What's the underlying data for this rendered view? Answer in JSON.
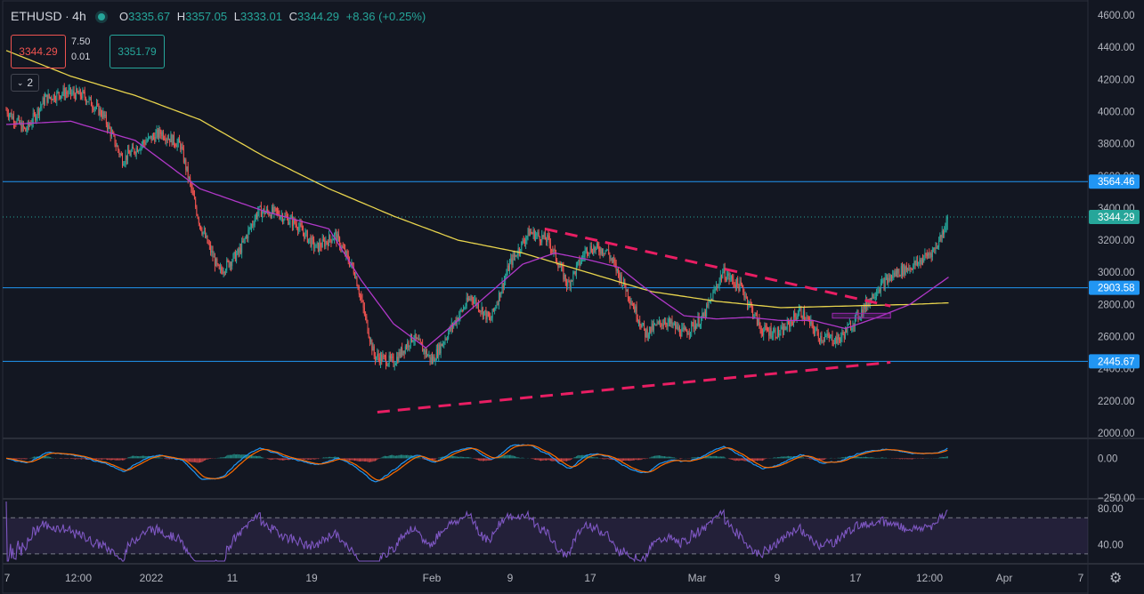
{
  "header": {
    "symbol": "ETHUSD",
    "interval": "4h",
    "open_label": "O",
    "open": "3335.67",
    "high_label": "H",
    "high": "3357.05",
    "low_label": "L",
    "low": "3333.01",
    "close_label": "C",
    "close": "3344.29",
    "change": "+8.36 (+0.25%)"
  },
  "trade": {
    "bid": "3344.29",
    "spread_top": "7.50",
    "spread_bottom": "0.01",
    "ask": "3351.79"
  },
  "indicators_toggle": "2",
  "colors": {
    "background": "#131722",
    "up": "#26a69a",
    "down": "#ef5350",
    "ma_long": "#e8d44d",
    "ma_short": "#b038c8",
    "trendline": "#e91e63",
    "hline": "#2196f3",
    "macd": "#2196f3",
    "signal": "#ff6d00",
    "rsi": "#7e57c2"
  },
  "icons": {
    "settings": "gear-icon",
    "collapse": "chevron-down-icon"
  },
  "chart_data": [
    {
      "type": "candlestick",
      "pane": "price",
      "ylim": [
        1950,
        4650
      ],
      "y_ticks": [
        "4600.00",
        "4400.00",
        "4200.00",
        "4000.00",
        "3800.00",
        "3600.00",
        "3400.00",
        "3200.00",
        "3000.00",
        "2800.00",
        "2600.00",
        "2400.00",
        "2200.00",
        "2000.00"
      ],
      "x_ticks": [
        "7",
        "12:00",
        "2022",
        "11",
        "19",
        "Feb",
        "9",
        "17",
        "Mar",
        "9",
        "17",
        "12:00",
        "Apr",
        "7"
      ],
      "price_tags": [
        {
          "label": "3564.46",
          "value": 3564.46,
          "color": "#2196f3"
        },
        {
          "label": "3344.29",
          "value": 3344.29,
          "color": "#26a69a"
        },
        {
          "label": "2903.58",
          "value": 2903.58,
          "color": "#2196f3"
        },
        {
          "label": "2445.67",
          "value": 2445.67,
          "color": "#2196f3"
        }
      ],
      "horizontal_lines": [
        3564.46,
        2903.58,
        2445.67
      ],
      "last_price_line": 3344.29,
      "trendlines": [
        {
          "from_day": 57.5,
          "from": 2130,
          "to_day": 137,
          "to": 2440
        },
        {
          "from_day": 83.5,
          "from": 3270,
          "to_day": 137,
          "to": 2790
        }
      ],
      "price_anchors_day_value": [
        [
          0,
          4010
        ],
        [
          3,
          3880
        ],
        [
          6,
          4080
        ],
        [
          9,
          4120
        ],
        [
          12,
          4100
        ],
        [
          15,
          3980
        ],
        [
          18,
          3700
        ],
        [
          21,
          3800
        ],
        [
          24,
          3870
        ],
        [
          27,
          3790
        ],
        [
          30,
          3300
        ],
        [
          33,
          3000
        ],
        [
          36,
          3120
        ],
        [
          39,
          3380
        ],
        [
          42,
          3370
        ],
        [
          45,
          3300
        ],
        [
          48,
          3150
        ],
        [
          51,
          3230
        ],
        [
          54,
          3000
        ],
        [
          57,
          2480
        ],
        [
          60,
          2440
        ],
        [
          63,
          2600
        ],
        [
          66,
          2450
        ],
        [
          69,
          2660
        ],
        [
          72,
          2850
        ],
        [
          75,
          2700
        ],
        [
          78,
          3050
        ],
        [
          81,
          3250
        ],
        [
          84,
          3200
        ],
        [
          87,
          2920
        ],
        [
          90,
          3150
        ],
        [
          93,
          3140
        ],
        [
          96,
          2900
        ],
        [
          99,
          2620
        ],
        [
          102,
          2700
        ],
        [
          105,
          2620
        ],
        [
          108,
          2720
        ],
        [
          111,
          3000
        ],
        [
          114,
          2900
        ],
        [
          117,
          2640
        ],
        [
          120,
          2620
        ],
        [
          123,
          2760
        ],
        [
          126,
          2600
        ],
        [
          129,
          2580
        ],
        [
          132,
          2730
        ],
        [
          135,
          2900
        ],
        [
          138,
          3000
        ],
        [
          141,
          3050
        ],
        [
          144,
          3150
        ],
        [
          146,
          3344
        ]
      ],
      "ma_long_day_value": [
        [
          0,
          4380
        ],
        [
          10,
          4220
        ],
        [
          20,
          4100
        ],
        [
          30,
          3950
        ],
        [
          40,
          3720
        ],
        [
          50,
          3520
        ],
        [
          60,
          3350
        ],
        [
          70,
          3200
        ],
        [
          80,
          3120
        ],
        [
          90,
          3000
        ],
        [
          100,
          2880
        ],
        [
          110,
          2820
        ],
        [
          120,
          2780
        ],
        [
          130,
          2790
        ],
        [
          140,
          2800
        ],
        [
          146,
          2810
        ]
      ],
      "ma_short_day_value": [
        [
          0,
          3920
        ],
        [
          10,
          3940
        ],
        [
          20,
          3820
        ],
        [
          30,
          3520
        ],
        [
          40,
          3380
        ],
        [
          50,
          3270
        ],
        [
          55,
          2950
        ],
        [
          60,
          2680
        ],
        [
          65,
          2530
        ],
        [
          70,
          2700
        ],
        [
          80,
          3050
        ],
        [
          85,
          3120
        ],
        [
          90,
          3080
        ],
        [
          95,
          3030
        ],
        [
          100,
          2870
        ],
        [
          105,
          2730
        ],
        [
          110,
          2710
        ],
        [
          115,
          2720
        ],
        [
          120,
          2700
        ],
        [
          125,
          2700
        ],
        [
          130,
          2650
        ],
        [
          135,
          2720
        ],
        [
          140,
          2800
        ],
        [
          146,
          2970
        ]
      ]
    },
    {
      "type": "macd",
      "pane": "macd",
      "ylim": [
        -250,
        120
      ],
      "y_ticks": [
        "0.00",
        "-250.00"
      ]
    },
    {
      "type": "line",
      "pane": "rsi",
      "ylim": [
        20,
        90
      ],
      "y_ticks": [
        "80.00",
        "40.00"
      ],
      "bands": [
        70,
        30
      ]
    }
  ]
}
